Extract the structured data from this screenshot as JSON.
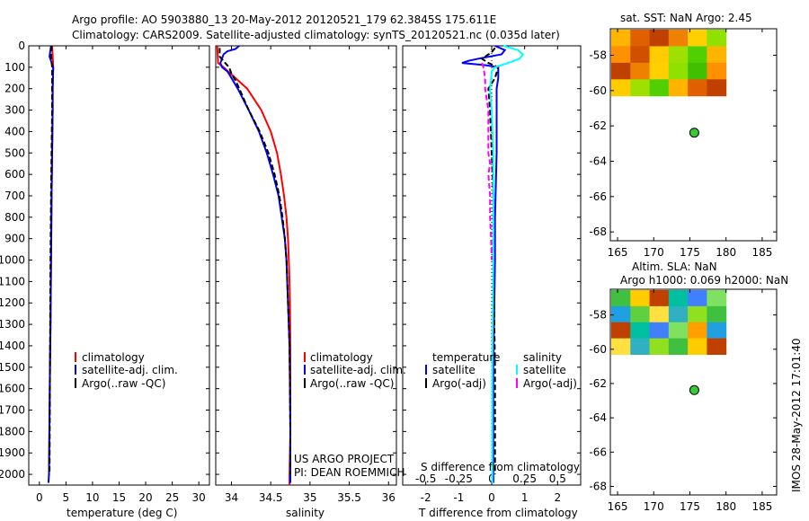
{
  "header": {
    "line1": "Argo profile: AO 5903880_13 20-May-2012 20120521_179 62.3845S 175.611E",
    "line2": "Climatology: CARS2009. Satellite-adjusted climatology: synTS_20120521.nc (0.035d later)"
  },
  "colors": {
    "climatology": "#ff0000",
    "satellite": "#0000ff",
    "argo": "#000000",
    "sal_sat": "#00ffff",
    "sal_argo": "#ff00ff",
    "float": "#33cc33"
  },
  "depth_ticks": [
    "0",
    "100",
    "200",
    "300",
    "400",
    "500",
    "600",
    "700",
    "800",
    "900",
    "1000",
    "1100",
    "1200",
    "1300",
    "1400",
    "1500",
    "1600",
    "1700",
    "1800",
    "1900",
    "2000"
  ],
  "chart_data": [
    {
      "type": "line",
      "panel": "temperature",
      "xlabel": "temperature (deg C)",
      "ylabel": "",
      "xlim": [
        -2,
        32
      ],
      "ylim": [
        2050,
        0
      ],
      "xticks": [
        0,
        5,
        10,
        15,
        20,
        25,
        30
      ],
      "legend": [
        "climatology",
        "satellite-adj. clim.",
        "Argo(..raw -QC)"
      ],
      "series": [
        {
          "name": "climatology",
          "y": [
            0,
            50,
            100,
            200,
            300,
            500,
            700,
            1000,
            1300,
            1500,
            2000
          ],
          "x": [
            2.4,
            2.5,
            2.6,
            2.5,
            2.5,
            2.4,
            2.3,
            2.2,
            2.1,
            2.0,
            1.8
          ]
        },
        {
          "name": "satellite-adj. clim.",
          "y": [
            0,
            50,
            100,
            200,
            300,
            500,
            700,
            1000,
            1300,
            1500,
            2000,
            2040
          ],
          "x": [
            2.2,
            1.9,
            2.6,
            2.5,
            2.5,
            2.4,
            2.3,
            2.2,
            2.1,
            2.0,
            1.8,
            1.7
          ]
        },
        {
          "name": "Argo(..raw -QC)",
          "y": [
            0,
            50,
            100,
            200,
            300,
            500,
            700,
            1000,
            1500,
            2000
          ],
          "x": [
            2.3,
            2.2,
            2.4,
            2.4,
            2.4,
            2.3,
            2.2,
            2.1,
            2.0,
            1.9
          ]
        }
      ]
    },
    {
      "type": "line",
      "panel": "salinity",
      "xlabel": "salinity",
      "ylabel": "",
      "xlim": [
        33.8,
        36.1
      ],
      "ylim": [
        2050,
        0
      ],
      "xticks": [
        34,
        34.5,
        35,
        35.5,
        36
      ],
      "legend": [
        "climatology",
        "satellite-adj. clim.",
        "Argo(..raw -QC)"
      ],
      "annotation": [
        "US ARGO PROJECT",
        "PI: DEAN ROEMMICH"
      ],
      "series": [
        {
          "name": "climatology",
          "y": [
            0,
            80,
            100,
            150,
            200,
            300,
            400,
            500,
            600,
            700,
            800,
            900,
            1000,
            1100,
            1200,
            1400,
            1600,
            1800,
            2000,
            2050
          ],
          "x": [
            33.82,
            33.83,
            33.9,
            34.05,
            34.2,
            34.38,
            34.5,
            34.58,
            34.63,
            34.67,
            34.7,
            34.72,
            34.73,
            34.74,
            34.745,
            34.75,
            34.75,
            34.75,
            34.74,
            34.74
          ]
        },
        {
          "name": "satellite-adj. clim.",
          "y": [
            0,
            15,
            25,
            40,
            60,
            80,
            100,
            120,
            150,
            200,
            300,
            400,
            500,
            600,
            700,
            800,
            900,
            1000,
            1200,
            1400,
            1600,
            1800,
            2000,
            2040
          ],
          "x": [
            34.1,
            34.05,
            33.95,
            33.9,
            33.88,
            33.86,
            33.88,
            33.95,
            34.0,
            34.08,
            34.22,
            34.35,
            34.45,
            34.53,
            34.6,
            34.64,
            34.68,
            34.7,
            34.72,
            34.74,
            34.745,
            34.75,
            34.75,
            34.75
          ]
        },
        {
          "name": "Argo(..raw -QC)",
          "y": [
            10,
            50,
            80,
            100,
            130,
            160,
            200,
            300,
            400,
            500,
            600,
            700,
            800,
            900,
            1000,
            1200,
            1400,
            1600,
            1800,
            2000
          ],
          "x": [
            33.85,
            33.85,
            33.92,
            33.97,
            34.0,
            34.05,
            34.1,
            34.22,
            34.36,
            34.47,
            34.55,
            34.61,
            34.65,
            34.68,
            34.7,
            34.72,
            34.74,
            34.745,
            34.75,
            34.75
          ]
        }
      ]
    },
    {
      "type": "line",
      "panel": "difference",
      "xlabel": "T difference from climatology",
      "ylabel": "",
      "xlim": [
        -2.7,
        2.7
      ],
      "ylim": [
        2050,
        0
      ],
      "xticks": [
        -2,
        -1,
        0,
        1,
        2
      ],
      "top_axis_label": "S difference from climatology",
      "top_ticks": [
        "-0.5",
        "-0.25",
        "0",
        "0.25",
        "0.5"
      ],
      "legend_titles": [
        "temperature",
        "salinity"
      ],
      "legend": [
        "satellite",
        "Argo(-adj)",
        "satellite",
        "Argo(-adj)"
      ],
      "series": [
        {
          "name": "temperature satellite",
          "y": [
            0,
            20,
            40,
            60,
            70,
            80,
            90,
            100,
            150,
            200,
            300,
            500,
            800,
            1000,
            1500,
            2000,
            2040
          ],
          "x": [
            0.1,
            0.4,
            0.3,
            -0.4,
            -0.7,
            -0.9,
            -0.2,
            0.2,
            0.2,
            0.15,
            0.15,
            0.15,
            0.1,
            0.1,
            0.05,
            0.05,
            0.05
          ]
        },
        {
          "name": "temperature Argo(-adj)",
          "y": [
            10,
            30,
            60,
            80,
            100,
            150,
            200,
            300,
            500,
            700,
            800,
            1000,
            1500,
            2000
          ],
          "x": [
            0.1,
            0.0,
            -0.3,
            -0.1,
            0.2,
            0.1,
            -0.1,
            -0.05,
            0.0,
            0.05,
            0.05,
            0.05,
            0.1,
            0.1
          ]
        },
        {
          "name": "salinity satellite",
          "y": [
            0,
            20,
            40,
            60,
            80,
            100,
            120,
            200,
            300,
            500,
            700,
            1000,
            1500,
            2000,
            2040
          ],
          "x": [
            0.35,
            0.8,
            0.95,
            0.85,
            0.5,
            0.1,
            0.0,
            -0.05,
            0.0,
            0.05,
            0.05,
            0.05,
            0.02,
            0.02,
            0.02
          ]
        },
        {
          "name": "salinity Argo(-adj)",
          "y": [
            80,
            100,
            150,
            200,
            300,
            400,
            500,
            550,
            600,
            700,
            800,
            900,
            1000
          ],
          "x": [
            -0.3,
            -0.25,
            -0.2,
            -0.2,
            -0.1,
            -0.1,
            -0.1,
            -0.05,
            -0.1,
            -0.05,
            -0.05,
            -0.02,
            0.0
          ]
        }
      ]
    }
  ],
  "maps": [
    {
      "title_lines": [
        "sat. SST: NaN Argo: 2.45"
      ],
      "xticks": [
        165,
        170,
        175,
        180,
        185
      ],
      "yticks": [
        -58,
        -60,
        -62,
        -64,
        -66,
        -68
      ],
      "xlim": [
        164,
        187
      ],
      "ylim": [
        -68.5,
        -56.5
      ],
      "point": {
        "lon": 175.611,
        "lat": -62.3845
      },
      "field_colors": [
        "#ffb400",
        "#e06000",
        "#c04000",
        "#f08000",
        "#ffd000",
        "#90e000",
        "#40c000",
        "#ff9000",
        "#d05000",
        "#ffcc00",
        "#a0e000",
        "#50d000"
      ]
    },
    {
      "title_lines": [
        "Altim. SLA: NaN",
        "Argo h1000: 0.069 h2000: NaN"
      ],
      "xticks": [
        165,
        170,
        175,
        180,
        185
      ],
      "yticks": [
        -58,
        -60,
        -62,
        -64,
        -66,
        -68
      ],
      "xlim": [
        164,
        187
      ],
      "ylim": [
        -68.5,
        -56.5
      ],
      "point": {
        "lon": 175.611,
        "lat": -62.3845
      },
      "field_colors": [
        "#40c040",
        "#ffcc00",
        "#c04000",
        "#00c0a0",
        "#4080ff",
        "#80e060",
        "#ffa000",
        "#20a0e0",
        "#60d040",
        "#ffe040",
        "#30b0c0",
        "#90e020"
      ]
    }
  ],
  "footer_vertical": "IMOS 28-May-2012 17:01:40"
}
